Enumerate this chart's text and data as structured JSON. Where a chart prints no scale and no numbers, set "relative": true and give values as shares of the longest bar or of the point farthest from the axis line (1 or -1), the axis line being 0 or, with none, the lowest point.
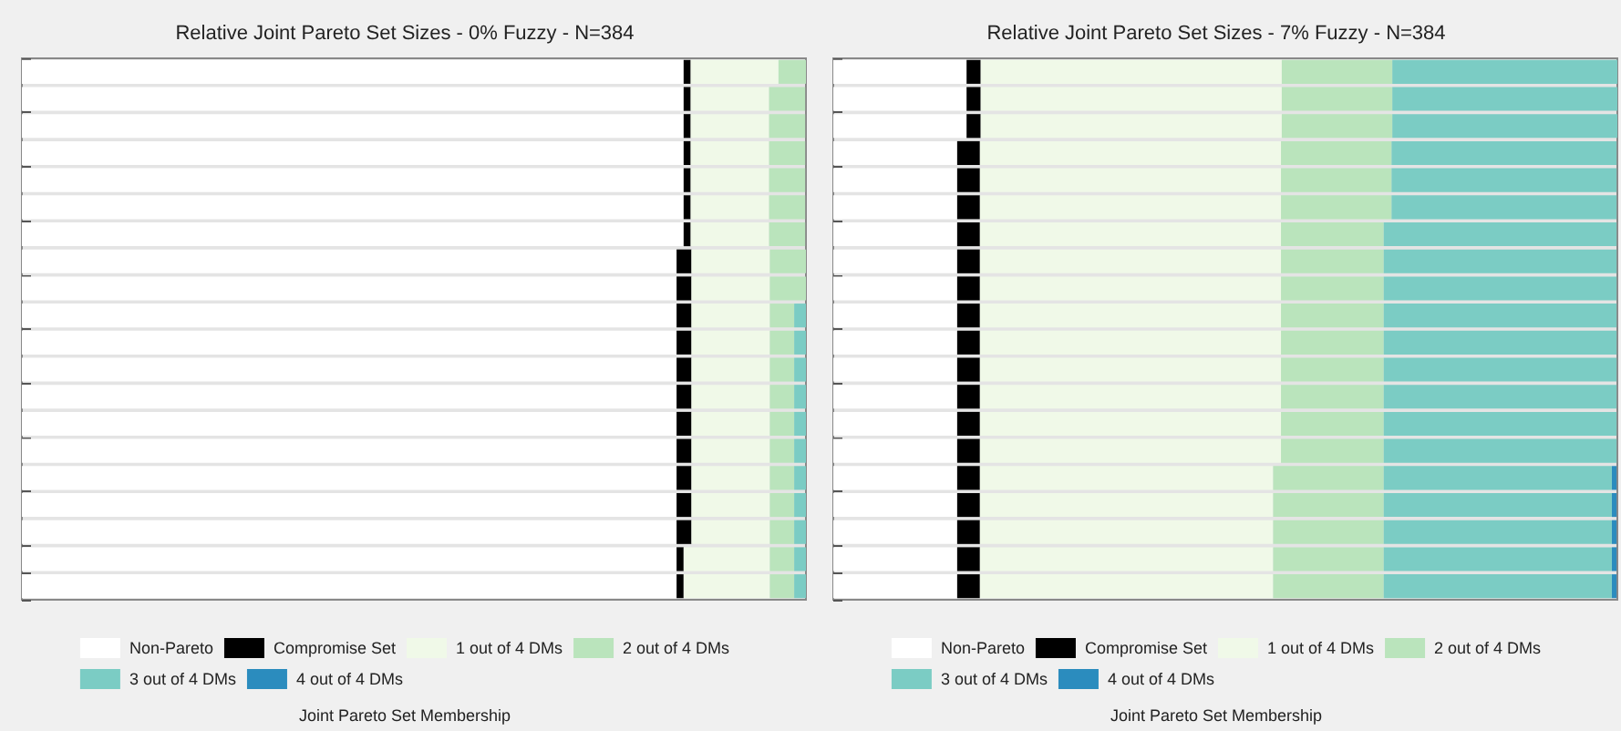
{
  "chart_data": [
    {
      "type": "bar",
      "orientation": "horizontal",
      "stacked": true,
      "relative": true,
      "legend": "bottom",
      "title": "Relative Joint Pareto Set Sizes - 0% Fuzzy - N=384",
      "clabel": "Joint Pareto Set Membership",
      "categories": [
        null,
        null,
        null,
        null,
        null,
        null,
        null,
        null,
        null,
        null,
        null,
        null,
        null,
        null,
        null,
        null,
        null,
        null,
        null,
        null
      ],
      "series": [
        {
          "name": "Non-Pareto",
          "color": "#ffffff",
          "values": [
            0.844,
            0.844,
            0.844,
            0.844,
            0.844,
            0.844,
            0.844,
            0.835,
            0.835,
            0.835,
            0.835,
            0.835,
            0.835,
            0.835,
            0.835,
            0.835,
            0.835,
            0.835,
            0.835,
            0.835
          ]
        },
        {
          "name": "Compromise Set",
          "color": "#000000",
          "values": [
            0.009,
            0.009,
            0.009,
            0.009,
            0.009,
            0.009,
            0.009,
            0.019,
            0.019,
            0.019,
            0.019,
            0.019,
            0.019,
            0.019,
            0.019,
            0.019,
            0.019,
            0.019,
            0.009,
            0.009
          ]
        },
        {
          "name": "1 out of 4 DMs",
          "color": "#f0f9e8",
          "values": [
            0.112,
            0.1,
            0.1,
            0.1,
            0.1,
            0.1,
            0.1,
            0.1,
            0.1,
            0.1,
            0.1,
            0.1,
            0.1,
            0.1,
            0.1,
            0.1,
            0.1,
            0.1,
            0.11,
            0.11
          ]
        },
        {
          "name": "2 out of 4 DMs",
          "color": "#bae4bc",
          "values": [
            0.035,
            0.046,
            0.046,
            0.046,
            0.046,
            0.046,
            0.046,
            0.046,
            0.046,
            0.031,
            0.031,
            0.031,
            0.031,
            0.031,
            0.031,
            0.031,
            0.031,
            0.031,
            0.031,
            0.031
          ]
        },
        {
          "name": "3 out of 4 DMs",
          "color": "#7bccc4",
          "values": [
            0,
            0,
            0,
            0,
            0,
            0,
            0,
            0,
            0,
            0.015,
            0.015,
            0.015,
            0.015,
            0.015,
            0.015,
            0.015,
            0.015,
            0.015,
            0.015,
            0.015
          ]
        },
        {
          "name": "4 out of 4 DMs",
          "color": "#2b8cbe",
          "values": [
            0,
            0,
            0,
            0,
            0,
            0,
            0,
            0,
            0,
            0,
            0,
            0,
            0,
            0,
            0,
            0,
            0,
            0,
            0,
            0
          ]
        }
      ]
    },
    {
      "type": "bar",
      "orientation": "horizontal",
      "stacked": true,
      "relative": true,
      "legend": "bottom",
      "title": "Relative Joint Pareto Set Sizes - 7% Fuzzy - N=384",
      "clabel": "Joint Pareto Set Membership",
      "categories": [
        null,
        null,
        null,
        null,
        null,
        null,
        null,
        null,
        null,
        null,
        null,
        null,
        null,
        null,
        null,
        null,
        null,
        null,
        null,
        null
      ],
      "series": [
        {
          "name": "Non-Pareto",
          "color": "#ffffff",
          "values": [
            0.17,
            0.17,
            0.17,
            0.158,
            0.158,
            0.158,
            0.158,
            0.158,
            0.158,
            0.158,
            0.158,
            0.158,
            0.158,
            0.158,
            0.158,
            0.158,
            0.158,
            0.158,
            0.158,
            0.158
          ]
        },
        {
          "name": "Compromise Set",
          "color": "#000000",
          "values": [
            0.018,
            0.018,
            0.018,
            0.029,
            0.029,
            0.029,
            0.029,
            0.029,
            0.029,
            0.029,
            0.029,
            0.029,
            0.029,
            0.029,
            0.029,
            0.029,
            0.029,
            0.029,
            0.029,
            0.029
          ]
        },
        {
          "name": "1 out of 4 DMs",
          "color": "#f0f9e8",
          "values": [
            0.384,
            0.384,
            0.384,
            0.384,
            0.384,
            0.384,
            0.384,
            0.384,
            0.384,
            0.384,
            0.384,
            0.384,
            0.384,
            0.384,
            0.384,
            0.374,
            0.374,
            0.374,
            0.374,
            0.374
          ]
        },
        {
          "name": "2 out of 4 DMs",
          "color": "#bae4bc",
          "values": [
            0.141,
            0.141,
            0.141,
            0.141,
            0.141,
            0.141,
            0.131,
            0.131,
            0.131,
            0.131,
            0.131,
            0.131,
            0.131,
            0.131,
            0.131,
            0.141,
            0.141,
            0.141,
            0.141,
            0.141
          ]
        },
        {
          "name": "3 out of 4 DMs",
          "color": "#7bccc4",
          "values": [
            0.287,
            0.287,
            0.287,
            0.287,
            0.287,
            0.287,
            0.297,
            0.297,
            0.297,
            0.297,
            0.297,
            0.297,
            0.297,
            0.297,
            0.297,
            0.291,
            0.291,
            0.291,
            0.291,
            0.291
          ]
        },
        {
          "name": "4 out of 4 DMs",
          "color": "#2b8cbe",
          "values": [
            0,
            0,
            0,
            0,
            0,
            0,
            0,
            0,
            0,
            0,
            0,
            0,
            0,
            0,
            0,
            0.006,
            0.006,
            0.006,
            0.006,
            0.006
          ]
        }
      ]
    }
  ]
}
